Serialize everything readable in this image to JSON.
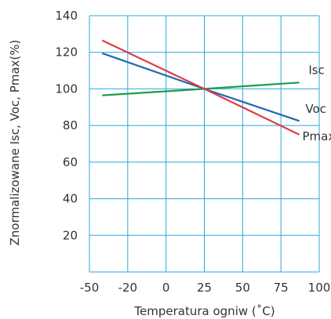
{
  "chart_data": {
    "type": "line",
    "title": "",
    "xlabel": "Temperatura ogniw (˚C)",
    "ylabel": "Znormalizowane Isc, Voc, Pmax(%)",
    "xlim": [
      -50,
      100
    ],
    "ylim": [
      0,
      140
    ],
    "x_ticks": [
      -50,
      -20,
      0,
      25,
      50,
      75,
      100
    ],
    "x_tick_labels": [
      "-50",
      "-20",
      "0",
      "25",
      "50",
      "75",
      "100"
    ],
    "y_ticks": [
      20,
      40,
      60,
      80,
      100,
      120,
      140
    ],
    "y_tick_labels": [
      "20",
      "40",
      "60",
      "80",
      "100",
      "120",
      "140"
    ],
    "grid": true,
    "grid_color": "#29a8e0",
    "series": [
      {
        "name": "Isc",
        "color": "#1e9a4a",
        "label_x": 93,
        "label_y": 108,
        "x": [
          -40,
          25,
          87
        ],
        "y": [
          96.5,
          100,
          103.5
        ]
      },
      {
        "name": "Voc",
        "color": "#2068b0",
        "label_x": 91,
        "label_y": 87,
        "x": [
          -40,
          25,
          87
        ],
        "y": [
          119.5,
          100,
          82.5
        ]
      },
      {
        "name": "Pmax",
        "color": "#e03a44",
        "label_x": 89,
        "label_y": 72,
        "x": [
          -40,
          25,
          87
        ],
        "y": [
          126.5,
          100,
          75
        ]
      }
    ]
  }
}
